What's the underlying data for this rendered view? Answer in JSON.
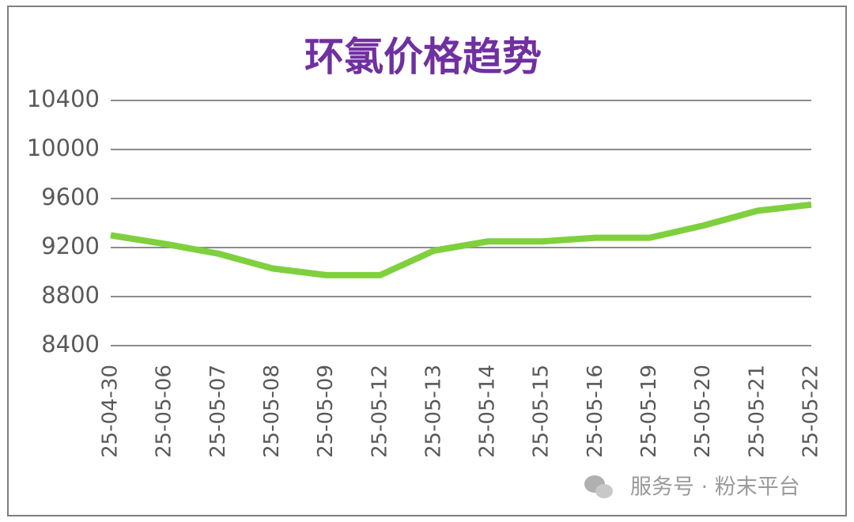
{
  "chart_data": {
    "type": "line",
    "title": "环氯价格趋势",
    "categories": [
      "25-04-30",
      "25-05-06",
      "25-05-07",
      "25-05-08",
      "25-05-09",
      "25-05-12",
      "25-05-13",
      "25-05-14",
      "25-05-15",
      "25-05-16",
      "25-05-19",
      "25-05-20",
      "25-05-21",
      "25-05-22"
    ],
    "series": [
      {
        "name": "环氯价格",
        "color": "#7fd03e",
        "values": [
          9300,
          9230,
          9150,
          9030,
          8975,
          8975,
          9175,
          9250,
          9250,
          9280,
          9280,
          9380,
          9500,
          9550
        ]
      }
    ],
    "ylim": [
      8400,
      10400
    ],
    "yticks": [
      8400,
      8800,
      9200,
      9600,
      10000,
      10400
    ],
    "grid": true,
    "watermark": "服务号 · 粉末平台"
  }
}
